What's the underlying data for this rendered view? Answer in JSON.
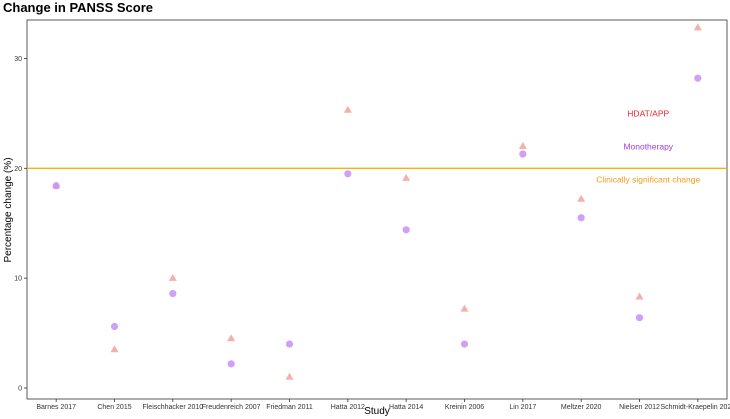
{
  "chart_data": {
    "type": "scatter",
    "title": "Change in PANSS Score",
    "xlabel": "Study",
    "ylabel": "Percentage change (%)",
    "categories": [
      "Barnes 2017",
      "Chen 2015",
      "Fleischhacker 2010",
      "Freudenreich 2007",
      "Friedman 2011",
      "Hatta 2012",
      "Hatta 2014",
      "Kreinin 2006",
      "Lin 2017",
      "Meltzer 2020",
      "Nielsen 2012",
      "Schmidt-Kraepelin 2022"
    ],
    "ylim": [
      -1,
      33.5
    ],
    "yticks": [
      0,
      10,
      20,
      30
    ],
    "grid": false,
    "series": [
      {
        "key": "hdat",
        "shape": "triangle",
        "color": "#f4a7a0",
        "values": [
          18.4,
          3.5,
          10.0,
          4.5,
          1.0,
          25.3,
          19.1,
          7.2,
          22.0,
          17.2,
          8.3,
          32.8
        ]
      },
      {
        "key": "mono",
        "shape": "circle",
        "color": "#c98ef5",
        "values": [
          18.4,
          5.6,
          8.6,
          2.2,
          4.0,
          19.5,
          14.4,
          4.0,
          21.3,
          15.5,
          6.4,
          28.2
        ]
      }
    ],
    "reference_line": {
      "y": 20,
      "color": "#f5b400"
    },
    "annotations": [
      {
        "text": "HDAT/APP",
        "color": "#e8262b",
        "y": 25
      },
      {
        "text": "Monotherapy",
        "color": "#a63bd8",
        "y": 22
      },
      {
        "text": "Clinically significant change",
        "color": "#f59a1a",
        "y": 19
      }
    ]
  }
}
